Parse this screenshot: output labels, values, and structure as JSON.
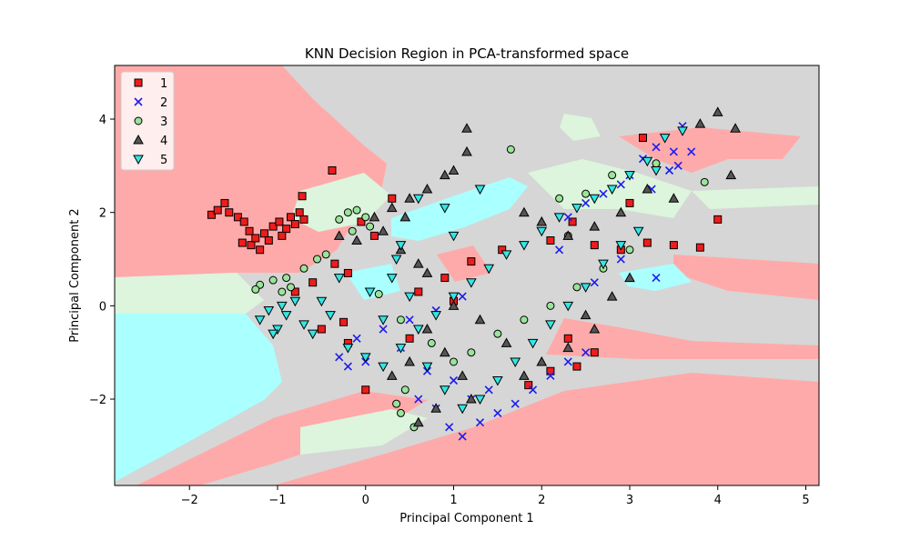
{
  "chart_data": {
    "type": "scatter",
    "title": "KNN Decision Region in PCA-transformed space",
    "xlabel": "Principal Component 1",
    "ylabel": "Principal Component 2",
    "xlim": [
      -2.85,
      5.15
    ],
    "ylim": [
      -3.85,
      5.15
    ],
    "xticks": [
      -2,
      -1,
      0,
      1,
      2,
      3,
      4,
      5
    ],
    "yticks": [
      -2,
      0,
      2,
      4
    ],
    "xtick_labels": [
      "−2",
      "−1",
      "0",
      "1",
      "2",
      "3",
      "4",
      "5"
    ],
    "ytick_labels": [
      "−2",
      "0",
      "2",
      "4"
    ],
    "grid": false,
    "legend_position": "top-left",
    "series": [
      {
        "name": "1",
        "marker": "square",
        "color": "#ee1c1c",
        "points": [
          [
            -1.75,
            1.95
          ],
          [
            -1.68,
            2.05
          ],
          [
            -1.6,
            2.2
          ],
          [
            -1.55,
            2.0
          ],
          [
            -1.45,
            1.9
          ],
          [
            -1.38,
            1.8
          ],
          [
            -1.32,
            1.6
          ],
          [
            -1.3,
            1.3
          ],
          [
            -1.25,
            1.45
          ],
          [
            -1.2,
            1.2
          ],
          [
            -1.15,
            1.55
          ],
          [
            -1.1,
            1.4
          ],
          [
            -1.05,
            1.7
          ],
          [
            -0.98,
            1.8
          ],
          [
            -0.9,
            1.65
          ],
          [
            -0.85,
            1.9
          ],
          [
            -0.8,
            1.75
          ],
          [
            -0.75,
            2.0
          ],
          [
            -0.7,
            1.85
          ],
          [
            -0.95,
            1.5
          ],
          [
            -1.4,
            1.35
          ],
          [
            -0.72,
            2.35
          ],
          [
            -0.38,
            2.9
          ],
          [
            -0.05,
            1.8
          ],
          [
            0.1,
            1.5
          ],
          [
            0.3,
            2.3
          ],
          [
            -0.2,
            0.7
          ],
          [
            -0.35,
            0.9
          ],
          [
            -0.6,
            0.5
          ],
          [
            -0.8,
            0.3
          ],
          [
            0.6,
            0.3
          ],
          [
            0.9,
            0.6
          ],
          [
            1.2,
            0.95
          ],
          [
            1.55,
            1.2
          ],
          [
            2.1,
            1.4
          ],
          [
            2.35,
            1.8
          ],
          [
            2.6,
            1.3
          ],
          [
            2.9,
            1.2
          ],
          [
            3.2,
            1.35
          ],
          [
            3.5,
            1.3
          ],
          [
            3.8,
            1.25
          ],
          [
            4.0,
            1.85
          ],
          [
            3.15,
            3.6
          ],
          [
            3.0,
            2.2
          ],
          [
            2.6,
            -1.0
          ],
          [
            2.4,
            -1.3
          ],
          [
            2.1,
            -1.4
          ],
          [
            1.85,
            -1.7
          ],
          [
            2.3,
            -0.7
          ],
          [
            0.0,
            -1.8
          ],
          [
            -0.2,
            -0.8
          ],
          [
            -0.5,
            -0.5
          ],
          [
            -0.25,
            -0.35
          ],
          [
            0.5,
            -0.7
          ],
          [
            1.0,
            0.1
          ]
        ]
      },
      {
        "name": "2",
        "marker": "x",
        "color": "#1c1cee",
        "points": [
          [
            -0.3,
            -1.1
          ],
          [
            -0.1,
            -0.7
          ],
          [
            0.2,
            -0.5
          ],
          [
            0.5,
            -0.3
          ],
          [
            0.8,
            -0.1
          ],
          [
            1.1,
            0.2
          ],
          [
            0.95,
            -2.6
          ],
          [
            1.1,
            -2.8
          ],
          [
            1.3,
            -2.5
          ],
          [
            1.5,
            -2.3
          ],
          [
            1.7,
            -2.1
          ],
          [
            1.9,
            -1.8
          ],
          [
            2.1,
            -1.5
          ],
          [
            0.8,
            -2.2
          ],
          [
            0.6,
            -2.0
          ],
          [
            1.2,
            -2.0
          ],
          [
            1.4,
            -1.8
          ],
          [
            1.0,
            -1.6
          ],
          [
            0.7,
            -1.4
          ],
          [
            2.3,
            -1.2
          ],
          [
            2.5,
            -1.0
          ],
          [
            3.0,
            2.8
          ],
          [
            3.15,
            3.15
          ],
          [
            3.3,
            3.4
          ],
          [
            3.5,
            3.3
          ],
          [
            3.7,
            3.3
          ],
          [
            3.45,
            2.9
          ],
          [
            3.55,
            3.0
          ],
          [
            3.25,
            2.5
          ],
          [
            2.9,
            2.6
          ],
          [
            2.7,
            2.4
          ],
          [
            2.5,
            2.2
          ],
          [
            2.3,
            1.9
          ],
          [
            2.2,
            1.2
          ],
          [
            3.6,
            3.85
          ],
          [
            3.3,
            0.6
          ],
          [
            2.9,
            1.0
          ],
          [
            2.6,
            0.5
          ],
          [
            0.4,
            -0.9
          ],
          [
            0.0,
            -1.2
          ],
          [
            -0.2,
            -1.3
          ]
        ]
      },
      {
        "name": "3",
        "marker": "circle",
        "color": "#9be39b",
        "points": [
          [
            -0.3,
            1.85
          ],
          [
            -0.2,
            2.0
          ],
          [
            -0.1,
            2.05
          ],
          [
            0.0,
            1.9
          ],
          [
            0.05,
            1.7
          ],
          [
            -0.15,
            1.6
          ],
          [
            -0.45,
            1.1
          ],
          [
            -0.55,
            1.0
          ],
          [
            -0.7,
            0.8
          ],
          [
            -0.9,
            0.6
          ],
          [
            -1.05,
            0.55
          ],
          [
            -1.2,
            0.45
          ],
          [
            -1.25,
            0.35
          ],
          [
            -0.85,
            0.4
          ],
          [
            -0.95,
            0.3
          ],
          [
            0.15,
            0.25
          ],
          [
            0.4,
            -0.3
          ],
          [
            0.75,
            -0.8
          ],
          [
            1.0,
            -1.2
          ],
          [
            1.2,
            -1.0
          ],
          [
            1.5,
            -0.6
          ],
          [
            1.8,
            -0.3
          ],
          [
            2.1,
            0.0
          ],
          [
            2.4,
            0.4
          ],
          [
            2.7,
            0.8
          ],
          [
            3.0,
            1.2
          ],
          [
            0.55,
            -2.6
          ],
          [
            0.35,
            -2.1
          ],
          [
            0.4,
            -2.3
          ],
          [
            2.2,
            2.3
          ],
          [
            2.5,
            2.4
          ],
          [
            2.8,
            2.8
          ],
          [
            3.3,
            3.05
          ],
          [
            3.85,
            2.65
          ],
          [
            1.65,
            3.35
          ],
          [
            0.45,
            -1.8
          ],
          [
            2.3,
            1.5
          ]
        ]
      },
      {
        "name": "4",
        "marker": "triangle-up",
        "color": "#555555",
        "points": [
          [
            0.1,
            1.9
          ],
          [
            0.3,
            2.1
          ],
          [
            0.5,
            2.3
          ],
          [
            0.7,
            2.5
          ],
          [
            0.9,
            2.8
          ],
          [
            1.0,
            2.9
          ],
          [
            -0.3,
            1.5
          ],
          [
            -0.1,
            1.4
          ],
          [
            0.2,
            1.6
          ],
          [
            0.4,
            1.2
          ],
          [
            0.6,
            0.9
          ],
          [
            0.7,
            0.7
          ],
          [
            0.45,
            1.9
          ],
          [
            1.15,
            3.8
          ],
          [
            1.15,
            3.3
          ],
          [
            1.8,
            2.0
          ],
          [
            2.0,
            1.8
          ],
          [
            2.3,
            1.5
          ],
          [
            2.6,
            1.7
          ],
          [
            2.9,
            2.0
          ],
          [
            3.2,
            2.5
          ],
          [
            3.5,
            2.3
          ],
          [
            4.0,
            4.15
          ],
          [
            4.2,
            3.8
          ],
          [
            4.15,
            2.8
          ],
          [
            3.8,
            3.9
          ],
          [
            2.5,
            -0.2
          ],
          [
            2.6,
            -0.5
          ],
          [
            2.3,
            -0.9
          ],
          [
            2.0,
            -1.2
          ],
          [
            1.8,
            -1.5
          ],
          [
            1.6,
            -0.8
          ],
          [
            1.3,
            -0.3
          ],
          [
            1.0,
            0.0
          ],
          [
            0.7,
            -0.5
          ],
          [
            0.9,
            -1.0
          ],
          [
            1.1,
            -1.5
          ],
          [
            0.6,
            -2.5
          ],
          [
            0.8,
            -2.2
          ],
          [
            1.2,
            -2.0
          ],
          [
            0.5,
            -1.2
          ],
          [
            0.3,
            -1.5
          ],
          [
            2.8,
            0.2
          ],
          [
            3.0,
            0.6
          ]
        ]
      },
      {
        "name": "5",
        "marker": "triangle-down",
        "color": "#33e6e6",
        "points": [
          [
            -0.9,
            -0.2
          ],
          [
            -1.0,
            -0.5
          ],
          [
            -1.1,
            -0.1
          ],
          [
            -1.2,
            -0.3
          ],
          [
            -0.8,
            0.1
          ],
          [
            -0.7,
            -0.4
          ],
          [
            -0.6,
            -0.6
          ],
          [
            -1.05,
            -0.6
          ],
          [
            -0.95,
            0.0
          ],
          [
            -0.5,
            0.1
          ],
          [
            -0.4,
            -0.2
          ],
          [
            -0.2,
            -0.9
          ],
          [
            0.0,
            -1.1
          ],
          [
            0.2,
            -1.3
          ],
          [
            0.4,
            -0.9
          ],
          [
            0.6,
            -0.5
          ],
          [
            0.8,
            -0.2
          ],
          [
            1.0,
            0.2
          ],
          [
            1.2,
            0.5
          ],
          [
            1.4,
            0.8
          ],
          [
            1.6,
            1.1
          ],
          [
            1.8,
            1.3
          ],
          [
            2.0,
            1.6
          ],
          [
            2.2,
            1.9
          ],
          [
            2.4,
            2.1
          ],
          [
            2.6,
            2.3
          ],
          [
            2.8,
            2.5
          ],
          [
            3.0,
            2.8
          ],
          [
            3.2,
            3.1
          ],
          [
            3.4,
            3.6
          ],
          [
            3.6,
            3.75
          ],
          [
            0.6,
            2.3
          ],
          [
            0.9,
            2.1
          ],
          [
            1.3,
            2.5
          ],
          [
            1.0,
            1.5
          ],
          [
            0.3,
            0.6
          ],
          [
            0.5,
            0.2
          ],
          [
            0.2,
            -0.3
          ],
          [
            0.7,
            -1.3
          ],
          [
            0.9,
            -1.8
          ],
          [
            1.1,
            -2.2
          ],
          [
            1.3,
            -2.0
          ],
          [
            1.5,
            -1.6
          ],
          [
            1.7,
            -1.2
          ],
          [
            1.9,
            -0.8
          ],
          [
            2.1,
            -0.4
          ],
          [
            2.3,
            0.0
          ],
          [
            2.5,
            0.4
          ],
          [
            2.7,
            0.9
          ],
          [
            2.9,
            1.3
          ],
          [
            3.1,
            1.6
          ],
          [
            0.4,
            1.3
          ],
          [
            -0.3,
            0.6
          ],
          [
            0.35,
            1.0
          ],
          [
            0.05,
            0.3
          ],
          [
            3.3,
            2.9
          ]
        ]
      }
    ]
  },
  "colors": {
    "region_1": "#ffaaaa",
    "region_2": "#aaaaff",
    "region_3": "#dcf5dc",
    "region_4": "#d6d6d6",
    "region_5": "#aaffff"
  }
}
